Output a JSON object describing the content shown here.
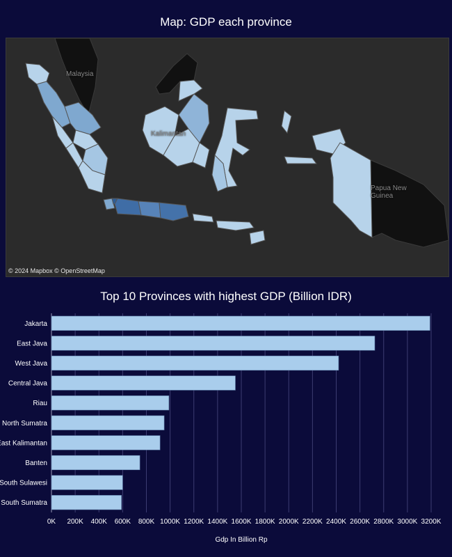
{
  "map": {
    "title": "Map: GDP each province",
    "labels": {
      "malaysia": "Malaysia",
      "kalimantan": "Kalimantan",
      "papua_new_guinea": "Papua New Guinea"
    },
    "attribution": "© 2024 Mapbox  © OpenStreetMap",
    "colors": {
      "background": "#2b2b2b",
      "neighbor_land": "#111111",
      "low_gdp": "#b7d3ea",
      "mid_gdp": "#7fa8cf",
      "high_gdp": "#3f6da6"
    }
  },
  "chart_data": {
    "type": "bar",
    "orientation": "horizontal",
    "title": "Top 10 Provinces with highest GDP (Billion IDR)",
    "xlabel": "Gdp In Billion Rp",
    "ylabel": "",
    "categories": [
      "Jakarta",
      "East Java",
      "West Java",
      "Central Java",
      "Riau",
      "North Sumatra",
      "East Kalimantan",
      "Banten",
      "South Sulawesi",
      "South Sumatra"
    ],
    "values": [
      3190,
      2725,
      2420,
      1550,
      990,
      950,
      915,
      745,
      600,
      590
    ],
    "xlim": [
      0,
      3200
    ],
    "ticks": [
      "0K",
      "200K",
      "400K",
      "600K",
      "800K",
      "1000K",
      "1200K",
      "1400K",
      "1600K",
      "1800K",
      "2000K",
      "2200K",
      "2400K",
      "2600K",
      "2800K",
      "3000K",
      "3200K"
    ],
    "grid": true,
    "bar_color": "#a9cdec",
    "grid_color": "#3c3c72"
  }
}
